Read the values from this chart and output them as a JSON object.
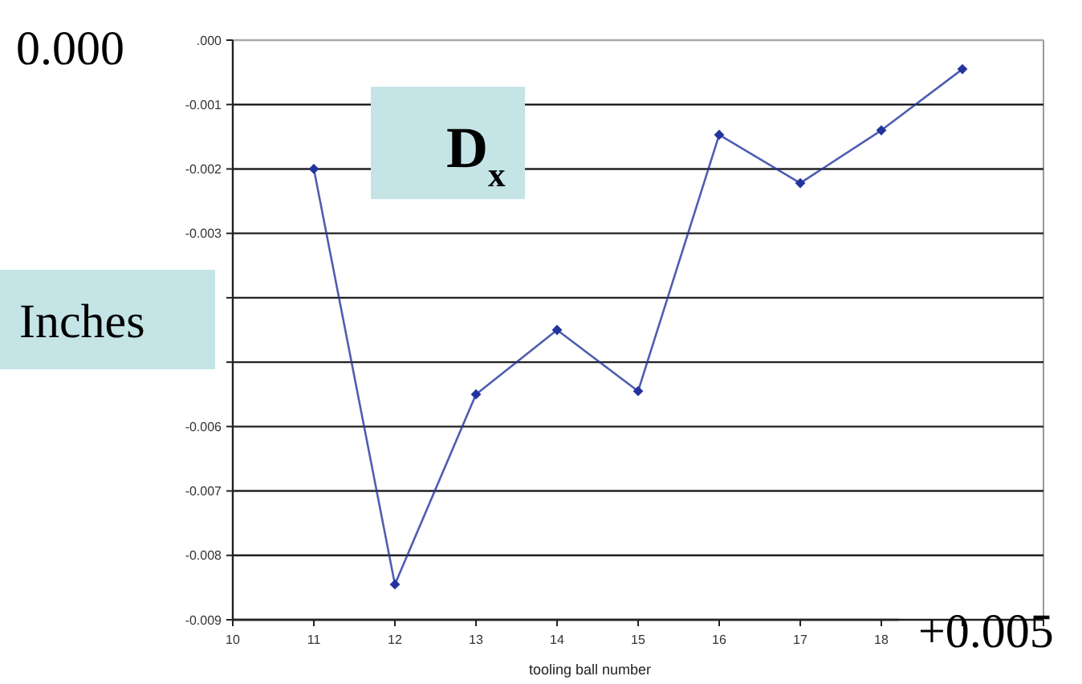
{
  "chart_data": {
    "type": "line",
    "xlabel": "tooling ball number",
    "x": [
      11,
      12,
      13,
      14,
      15,
      16,
      17,
      18,
      19
    ],
    "series": [
      {
        "color": "#23349e",
        "values": [
          -0.002,
          -0.00845,
          -0.0055,
          -0.0045,
          -0.00545,
          -0.00147,
          -0.00222,
          -0.0014,
          -0.00045
        ]
      }
    ],
    "xlim": [
      10,
      20
    ],
    "xticks": [
      10,
      11,
      12,
      13,
      14,
      15,
      16,
      17,
      18,
      {
        "value": 19,
        "label": null
      },
      {
        "value": 20,
        "label": null
      }
    ],
    "ylim": [
      -0.009,
      0
    ],
    "yticks": [
      {
        "value": 0,
        "label": ".000"
      },
      -0.001,
      -0.002,
      -0.003,
      {
        "value": -0.004,
        "label": null
      },
      {
        "value": -0.005,
        "label": null
      },
      -0.006,
      -0.007,
      -0.008,
      -0.009
    ],
    "grid": "y",
    "marker": "diamond",
    "line_style": "solid",
    "annotations": [
      "0.000",
      "D$_{x}$",
      "Inches",
      "+0.005"
    ]
  }
}
